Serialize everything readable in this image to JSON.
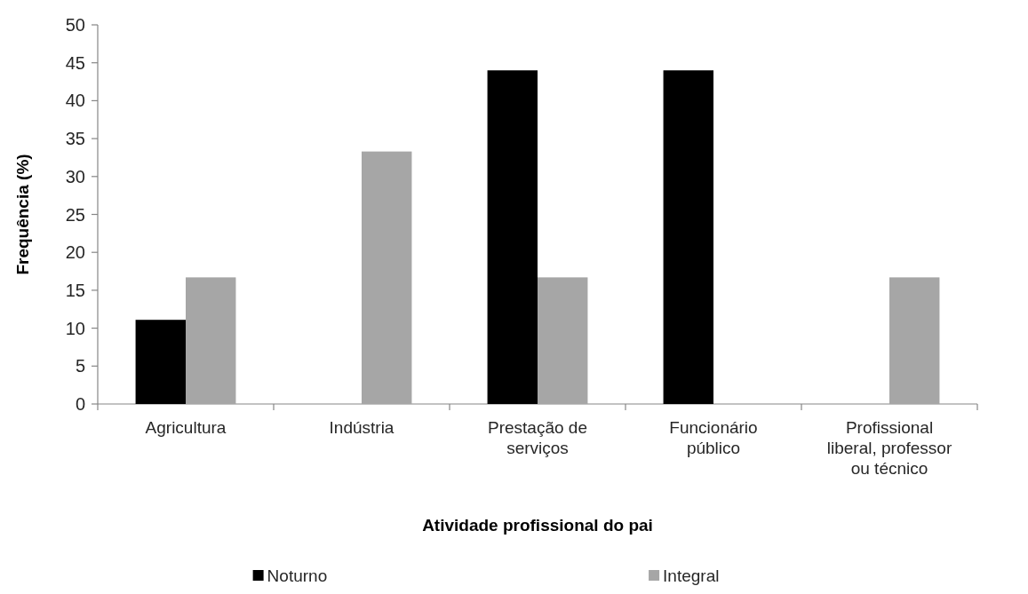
{
  "chart_data": {
    "type": "bar",
    "xlabel": "Atividade profissional do pai",
    "ylabel": "Frequência (%)",
    "categories": [
      "Agricultura",
      "Indústria",
      "Prestação de serviços",
      "Funcionário público",
      "Profissional liberal, professor ou técnico"
    ],
    "series": [
      {
        "name": "Noturno",
        "color": "#000000",
        "values": [
          11.1,
          0,
          44,
          44,
          0
        ]
      },
      {
        "name": "Integral",
        "color": "#a6a6a6",
        "values": [
          16.7,
          33.3,
          16.7,
          0,
          16.7
        ]
      }
    ],
    "ylim": [
      0,
      50
    ],
    "yticks": [
      0,
      5,
      10,
      15,
      20,
      25,
      30,
      35,
      40,
      45,
      50
    ],
    "grid": false,
    "legend": "bottom"
  }
}
